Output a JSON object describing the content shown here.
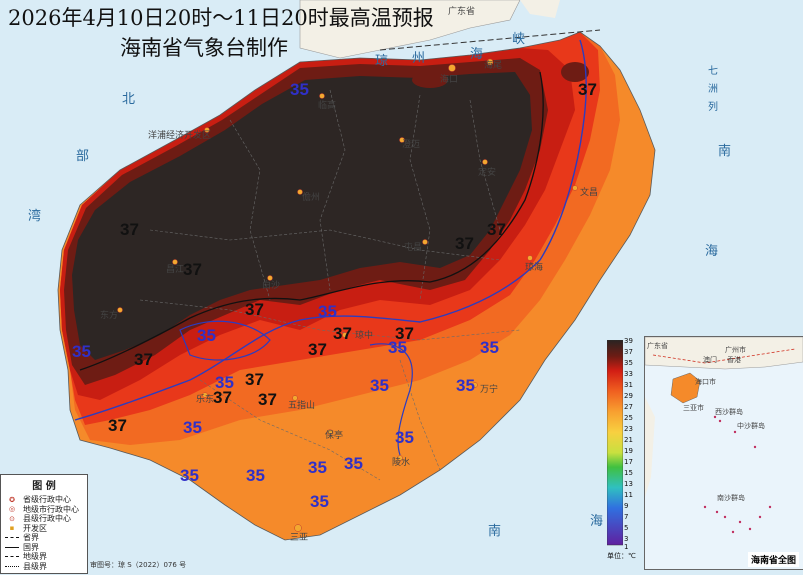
{
  "title": "2026年4月10日20时～11日20时最高温预报",
  "subtitle": "海南省气象台制作",
  "sea_labels": {
    "beibu_1": "北",
    "beibu_2": "部",
    "beibu_3": "湾",
    "qiongzhou_1": "琼",
    "qiongzhou_2": "州",
    "qiongzhou_3": "海",
    "qiongzhou_4": "峡",
    "nan_1": "南",
    "nan_2": "海",
    "south_1": "南",
    "south_2": "海",
    "qizhou_1": "七",
    "qizhou_2": "洲",
    "qizhou_3": "列",
    "guangdong": "广东省"
  },
  "isotherm_labels": [
    {
      "text": "37",
      "color": "black"
    },
    {
      "text": "37",
      "color": "black"
    },
    {
      "text": "37",
      "color": "black"
    },
    {
      "text": "37",
      "color": "black"
    },
    {
      "text": "37",
      "color": "black"
    },
    {
      "text": "37",
      "color": "black"
    },
    {
      "text": "37",
      "color": "black"
    },
    {
      "text": "37",
      "color": "black"
    },
    {
      "text": "37",
      "color": "black"
    },
    {
      "text": "37",
      "color": "black"
    },
    {
      "text": "37",
      "color": "black"
    },
    {
      "text": "37",
      "color": "black"
    },
    {
      "text": "37",
      "color": "black"
    },
    {
      "text": "37",
      "color": "black"
    },
    {
      "text": "35",
      "color": "blue"
    },
    {
      "text": "35",
      "color": "blue"
    },
    {
      "text": "35",
      "color": "blue"
    },
    {
      "text": "35",
      "color": "blue"
    },
    {
      "text": "35",
      "color": "blue"
    },
    {
      "text": "35",
      "color": "blue"
    },
    {
      "text": "35",
      "color": "blue"
    },
    {
      "text": "35",
      "color": "blue"
    },
    {
      "text": "35",
      "color": "blue"
    },
    {
      "text": "35",
      "color": "blue"
    },
    {
      "text": "35",
      "color": "blue"
    },
    {
      "text": "35",
      "color": "blue"
    },
    {
      "text": "35",
      "color": "blue"
    },
    {
      "text": "35",
      "color": "blue"
    },
    {
      "text": "35",
      "color": "blue"
    },
    {
      "text": "35",
      "color": "blue"
    }
  ],
  "cities": {
    "haikou": "海口",
    "yangpu": "洋浦经济开发区",
    "chengmai": "澄迈",
    "lingao": "临高",
    "danzhou": "儋州",
    "dingan": "定安",
    "wenchang": "文昌",
    "qionghai": "琼海",
    "tunchang": "屯昌",
    "wanning": "万宁",
    "changjiang": "昌江",
    "baisha": "白沙",
    "dongfang": "东方",
    "ledong": "乐东",
    "baoting": "保亭",
    "lingshui": "陵水",
    "sanya": "三亚",
    "wuzhishan": "五指山",
    "qiongzhong": "琼中",
    "haiwei": "海尾"
  },
  "legend": {
    "title": "图   例",
    "items": [
      "省级行政中心",
      "地级市行政中心",
      "县级行政中心",
      "开发区",
      "省界",
      "国界",
      "地级界",
      "县级界"
    ]
  },
  "scale": {
    "ticks": [
      "39",
      "37",
      "35",
      "33",
      "31",
      "29",
      "27",
      "25",
      "23",
      "21",
      "19",
      "17",
      "15",
      "13",
      "11",
      "9",
      "7",
      "5",
      "3",
      "1"
    ],
    "unit": "单位：℃"
  },
  "inset": {
    "label": "海南省全图",
    "places": [
      "广东省",
      "广州市",
      "香港",
      "澳门",
      "海口市",
      "三亚市",
      "西沙群岛",
      "中沙群岛",
      "南沙群岛"
    ]
  },
  "footer": "审图号：琼 S（2022）076 号",
  "colors": {
    "sea": "#d9ecf6",
    "land_other": "#f3f0e6",
    "t39": "#2a2422",
    "t37": "#6e1c14",
    "t36": "#c81e12",
    "t35": "#e8381a",
    "t33": "#f05a1c",
    "t31": "#f47a22",
    "isotherm_35": "#2c3cc0",
    "isotherm_37": "#111111"
  }
}
